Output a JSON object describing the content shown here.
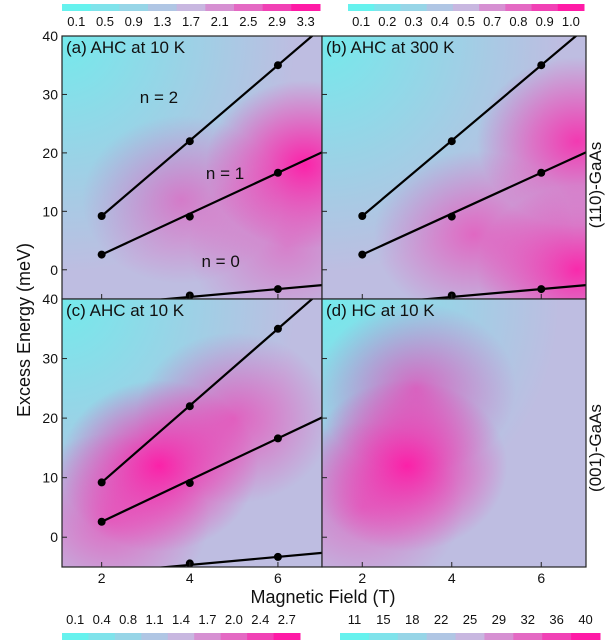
{
  "figure": {
    "xlabel": "Magnetic Field (T)",
    "ylabel": "Excess Energy  (meV)",
    "row_labels": [
      "(110)-GaAs",
      "(001)-GaAs"
    ]
  },
  "chart_data": [
    {
      "type": "heatmap",
      "panel": "(a) AHC at 10 K",
      "title": "(a) AHC at 10 K",
      "xlim": [
        1.1,
        7.0
      ],
      "ylim": [
        -5,
        40
      ],
      "xticks": [
        2,
        4,
        6
      ],
      "yticks": [
        0,
        10,
        20,
        30,
        40
      ],
      "colorbar": {
        "position": "top",
        "ticks": [
          "0.1",
          "0.5",
          "0.9",
          "1.3",
          "1.7",
          "2.1",
          "2.5",
          "2.9",
          "3.3"
        ],
        "range": [
          0.1,
          3.3
        ]
      },
      "hotspots": [
        {
          "x": 6.6,
          "y": 18,
          "strength": 1.0
        },
        {
          "x": 3.8,
          "y": 12,
          "strength": 0.45
        },
        {
          "x": 6.2,
          "y": 4,
          "strength": 0.4
        }
      ],
      "landau_levels": [
        {
          "name": "n = 2",
          "points": [
            [
              2,
              9.2
            ],
            [
              4,
              22.0
            ],
            [
              6,
              35.0
            ]
          ]
        },
        {
          "name": "n = 1",
          "points": [
            [
              2,
              2.6
            ],
            [
              4,
              9.1
            ],
            [
              6,
              16.6
            ]
          ]
        },
        {
          "name": "n = 0",
          "points": [
            [
              2,
              -6.0
            ],
            [
              4,
              -4.4
            ],
            [
              6,
              -3.3
            ]
          ]
        }
      ]
    },
    {
      "type": "heatmap",
      "panel": "(b) AHC at 300 K",
      "title": "(b) AHC at 300 K",
      "xlim": [
        1.1,
        7.0
      ],
      "ylim": [
        -5,
        40
      ],
      "xticks": [
        2,
        4,
        6
      ],
      "yticks": [
        0,
        10,
        20,
        30,
        40
      ],
      "colorbar": {
        "position": "top",
        "ticks": [
          "0.1",
          "0.2",
          "0.3",
          "0.4",
          "0.5",
          "0.7",
          "0.8",
          "0.9",
          "1.0"
        ],
        "range": [
          0.1,
          1.0
        ]
      },
      "hotspots": [
        {
          "x": 6.8,
          "y": 0,
          "strength": 0.95
        },
        {
          "x": 6.8,
          "y": 22,
          "strength": 0.85
        },
        {
          "x": 4.5,
          "y": 6,
          "strength": 0.55
        }
      ],
      "landau_levels": [
        {
          "name": "",
          "points": [
            [
              2,
              9.2
            ],
            [
              4,
              22.0
            ],
            [
              6,
              35.0
            ]
          ]
        },
        {
          "name": "",
          "points": [
            [
              2,
              2.6
            ],
            [
              4,
              9.1
            ],
            [
              6,
              16.6
            ]
          ]
        },
        {
          "name": "",
          "points": [
            [
              2,
              -6.0
            ],
            [
              4,
              -4.4
            ],
            [
              6,
              -3.3
            ]
          ]
        }
      ]
    },
    {
      "type": "heatmap",
      "panel": "(c) AHC at 10 K",
      "title": "(c) AHC at 10 K",
      "xlim": [
        1.1,
        7.0
      ],
      "ylim": [
        -5,
        40
      ],
      "xticks": [
        2,
        4,
        6
      ],
      "yticks": [
        0,
        10,
        20,
        30,
        40
      ],
      "colorbar": {
        "position": "bottom",
        "ticks": [
          "0.1",
          "0.4",
          "0.8",
          "1.1",
          "1.4",
          "1.7",
          "2.0",
          "2.4",
          "2.7"
        ],
        "range": [
          0.1,
          2.7
        ]
      },
      "hotspots": [
        {
          "x": 3.3,
          "y": 12,
          "strength": 1.0
        },
        {
          "x": 5.0,
          "y": 20,
          "strength": 0.6
        },
        {
          "x": 2.2,
          "y": 3,
          "strength": 0.55
        }
      ],
      "landau_levels": [
        {
          "name": "",
          "points": [
            [
              2,
              9.2
            ],
            [
              4,
              22.0
            ],
            [
              6,
              35.0
            ]
          ]
        },
        {
          "name": "",
          "points": [
            [
              2,
              2.6
            ],
            [
              4,
              9.1
            ],
            [
              6,
              16.6
            ]
          ]
        },
        {
          "name": "",
          "points": [
            [
              2,
              -6.0
            ],
            [
              4,
              -4.4
            ],
            [
              6,
              -3.3
            ]
          ]
        }
      ]
    },
    {
      "type": "heatmap",
      "panel": "(d) HC at 10 K",
      "title": "(d)    HC at 10 K",
      "xlim": [
        1.1,
        7.0
      ],
      "ylim": [
        -5,
        40
      ],
      "xticks": [
        2,
        4,
        6
      ],
      "yticks": [
        0,
        10,
        20,
        30,
        40
      ],
      "colorbar": {
        "position": "bottom",
        "ticks": [
          "11",
          "15",
          "18",
          "22",
          "25",
          "29",
          "32",
          "36",
          "40"
        ],
        "range": [
          11,
          40
        ]
      },
      "hotspots": [
        {
          "x": 3.0,
          "y": 12,
          "strength": 1.0
        },
        {
          "x": 3.2,
          "y": 25,
          "strength": 0.6
        },
        {
          "x": 2.0,
          "y": 5,
          "strength": 0.45
        }
      ],
      "landau_levels": []
    }
  ],
  "colors": {
    "low": "#66f2ee",
    "mid": "#c8b7e0",
    "high": "#ff1aa6",
    "line": "#000000"
  }
}
